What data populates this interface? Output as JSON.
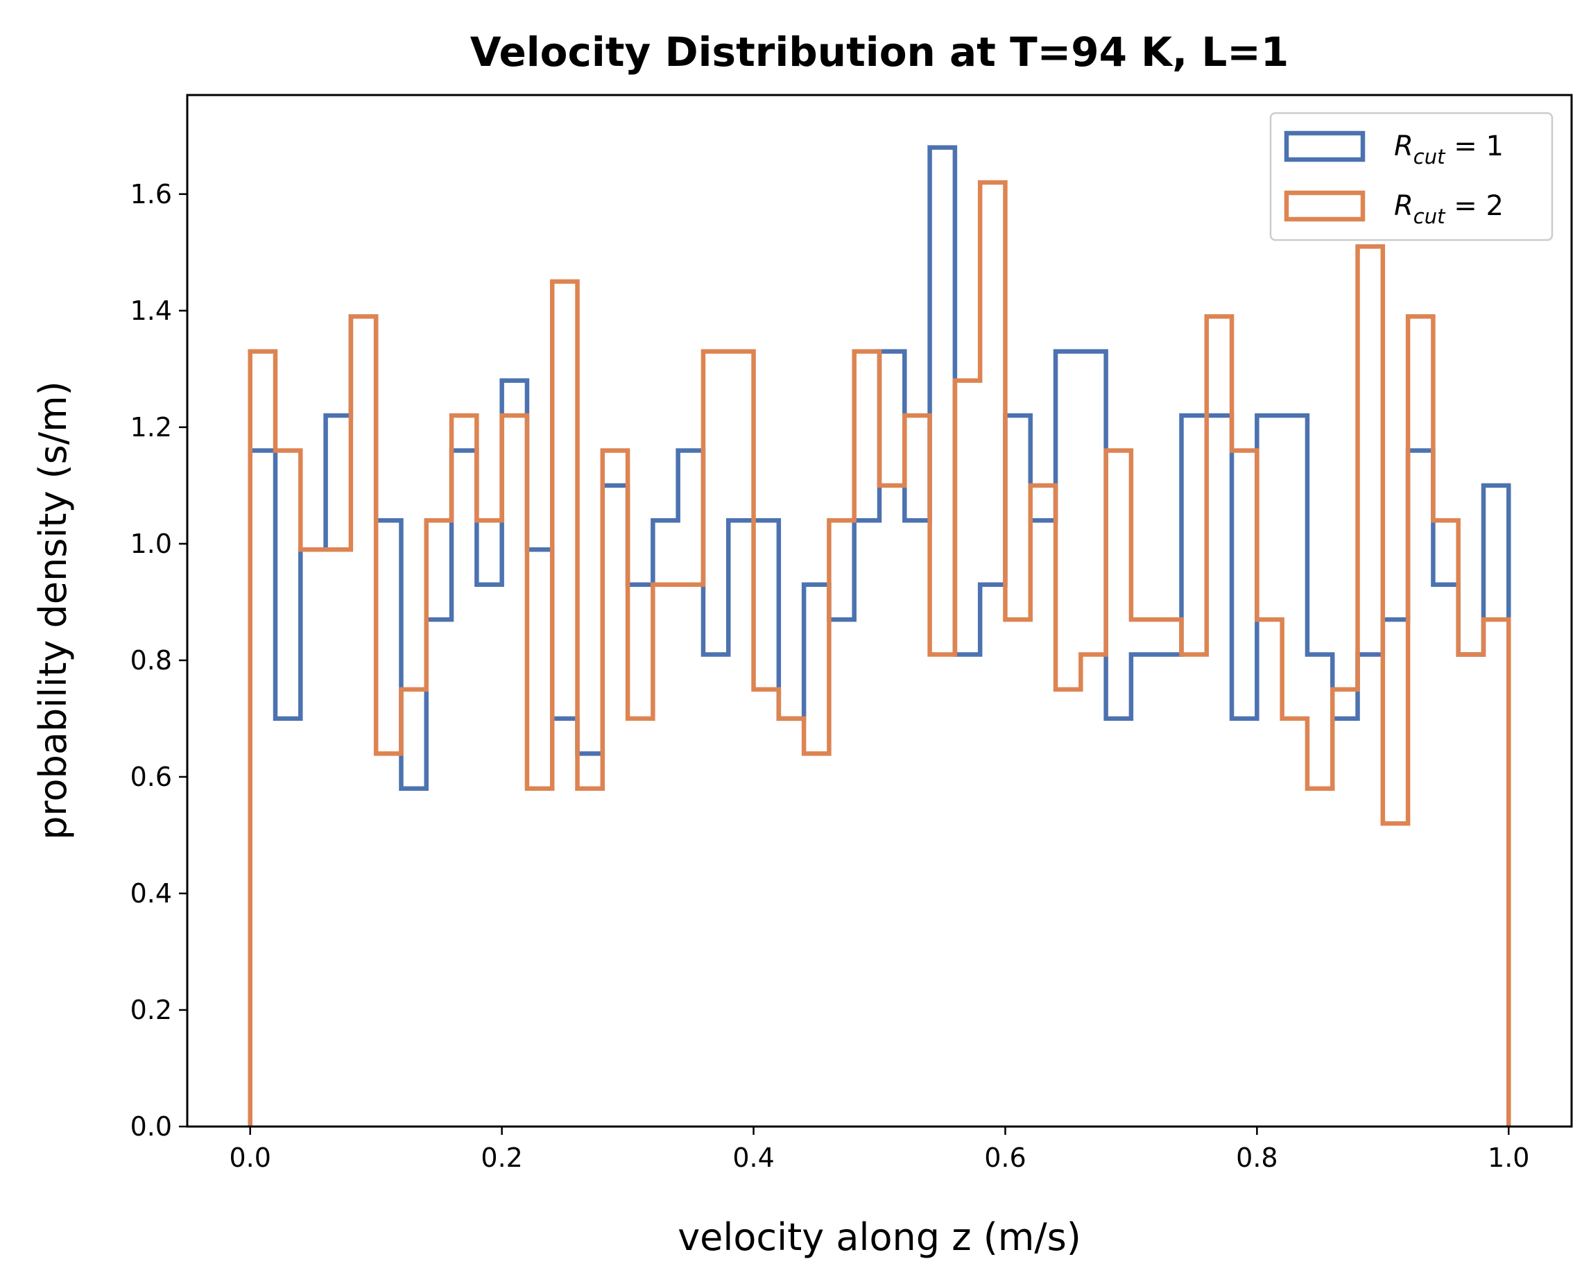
{
  "chart_data": {
    "type": "histogram",
    "title": "Velocity Distribution at T=94 K, L=1",
    "xlabel": "velocity along z (m/s)",
    "ylabel": "probability density (s/m)",
    "xlim": [
      -0.05,
      1.05
    ],
    "ylim": [
      0.0,
      1.77
    ],
    "xticks": [
      "0.0",
      "0.2",
      "0.4",
      "0.6",
      "0.8",
      "1.0"
    ],
    "yticks": [
      "0.0",
      "0.2",
      "0.4",
      "0.6",
      "0.8",
      "1.0",
      "1.2",
      "1.4",
      "1.6"
    ],
    "grid": false,
    "legend_position": "top-right",
    "bin_edges": [
      0.0,
      0.02,
      0.04,
      0.06,
      0.08,
      0.1,
      0.12,
      0.14,
      0.16,
      0.18,
      0.2,
      0.22,
      0.24,
      0.26,
      0.28,
      0.3,
      0.32,
      0.34,
      0.36,
      0.38,
      0.4,
      0.42,
      0.44,
      0.46,
      0.48,
      0.5,
      0.52,
      0.54,
      0.56,
      0.58,
      0.6,
      0.62,
      0.64,
      0.66,
      0.68,
      0.7,
      0.72,
      0.74,
      0.76,
      0.78,
      0.8,
      0.82,
      0.84,
      0.86,
      0.88,
      0.9,
      0.92,
      0.94,
      0.96,
      0.98,
      1.0
    ],
    "series": [
      {
        "name": "R_cut = 1",
        "legend_main": "R",
        "legend_sub": "cut",
        "legend_rest": " = 1",
        "color": "#4c72b0",
        "values": [
          1.16,
          0.7,
          0.99,
          1.22,
          1.39,
          1.04,
          0.58,
          0.87,
          1.16,
          0.93,
          1.28,
          0.99,
          0.7,
          0.64,
          1.1,
          0.93,
          1.04,
          1.16,
          0.81,
          1.04,
          1.04,
          0.7,
          0.93,
          0.87,
          1.04,
          1.33,
          1.04,
          1.68,
          0.81,
          0.93,
          1.22,
          1.04,
          1.33,
          1.33,
          0.7,
          0.81,
          0.81,
          1.22,
          1.22,
          0.7,
          1.22,
          1.22,
          0.81,
          0.7,
          0.81,
          0.87,
          1.16,
          0.93,
          0.81,
          1.1
        ]
      },
      {
        "name": "R_cut = 2",
        "legend_main": "R",
        "legend_sub": "cut",
        "legend_rest": " = 2",
        "color": "#dd8452",
        "values": [
          1.33,
          1.16,
          0.99,
          0.99,
          1.39,
          0.64,
          0.75,
          1.04,
          1.22,
          1.04,
          1.22,
          0.58,
          1.45,
          0.58,
          1.16,
          0.7,
          0.93,
          0.93,
          1.33,
          1.33,
          0.75,
          0.7,
          0.64,
          1.04,
          1.33,
          1.1,
          1.22,
          0.81,
          1.28,
          1.62,
          0.87,
          1.1,
          0.75,
          0.81,
          1.16,
          0.87,
          0.87,
          0.81,
          1.39,
          1.16,
          0.87,
          0.7,
          0.58,
          0.75,
          1.51,
          0.52,
          1.39,
          1.04,
          0.81,
          0.87
        ]
      }
    ]
  }
}
